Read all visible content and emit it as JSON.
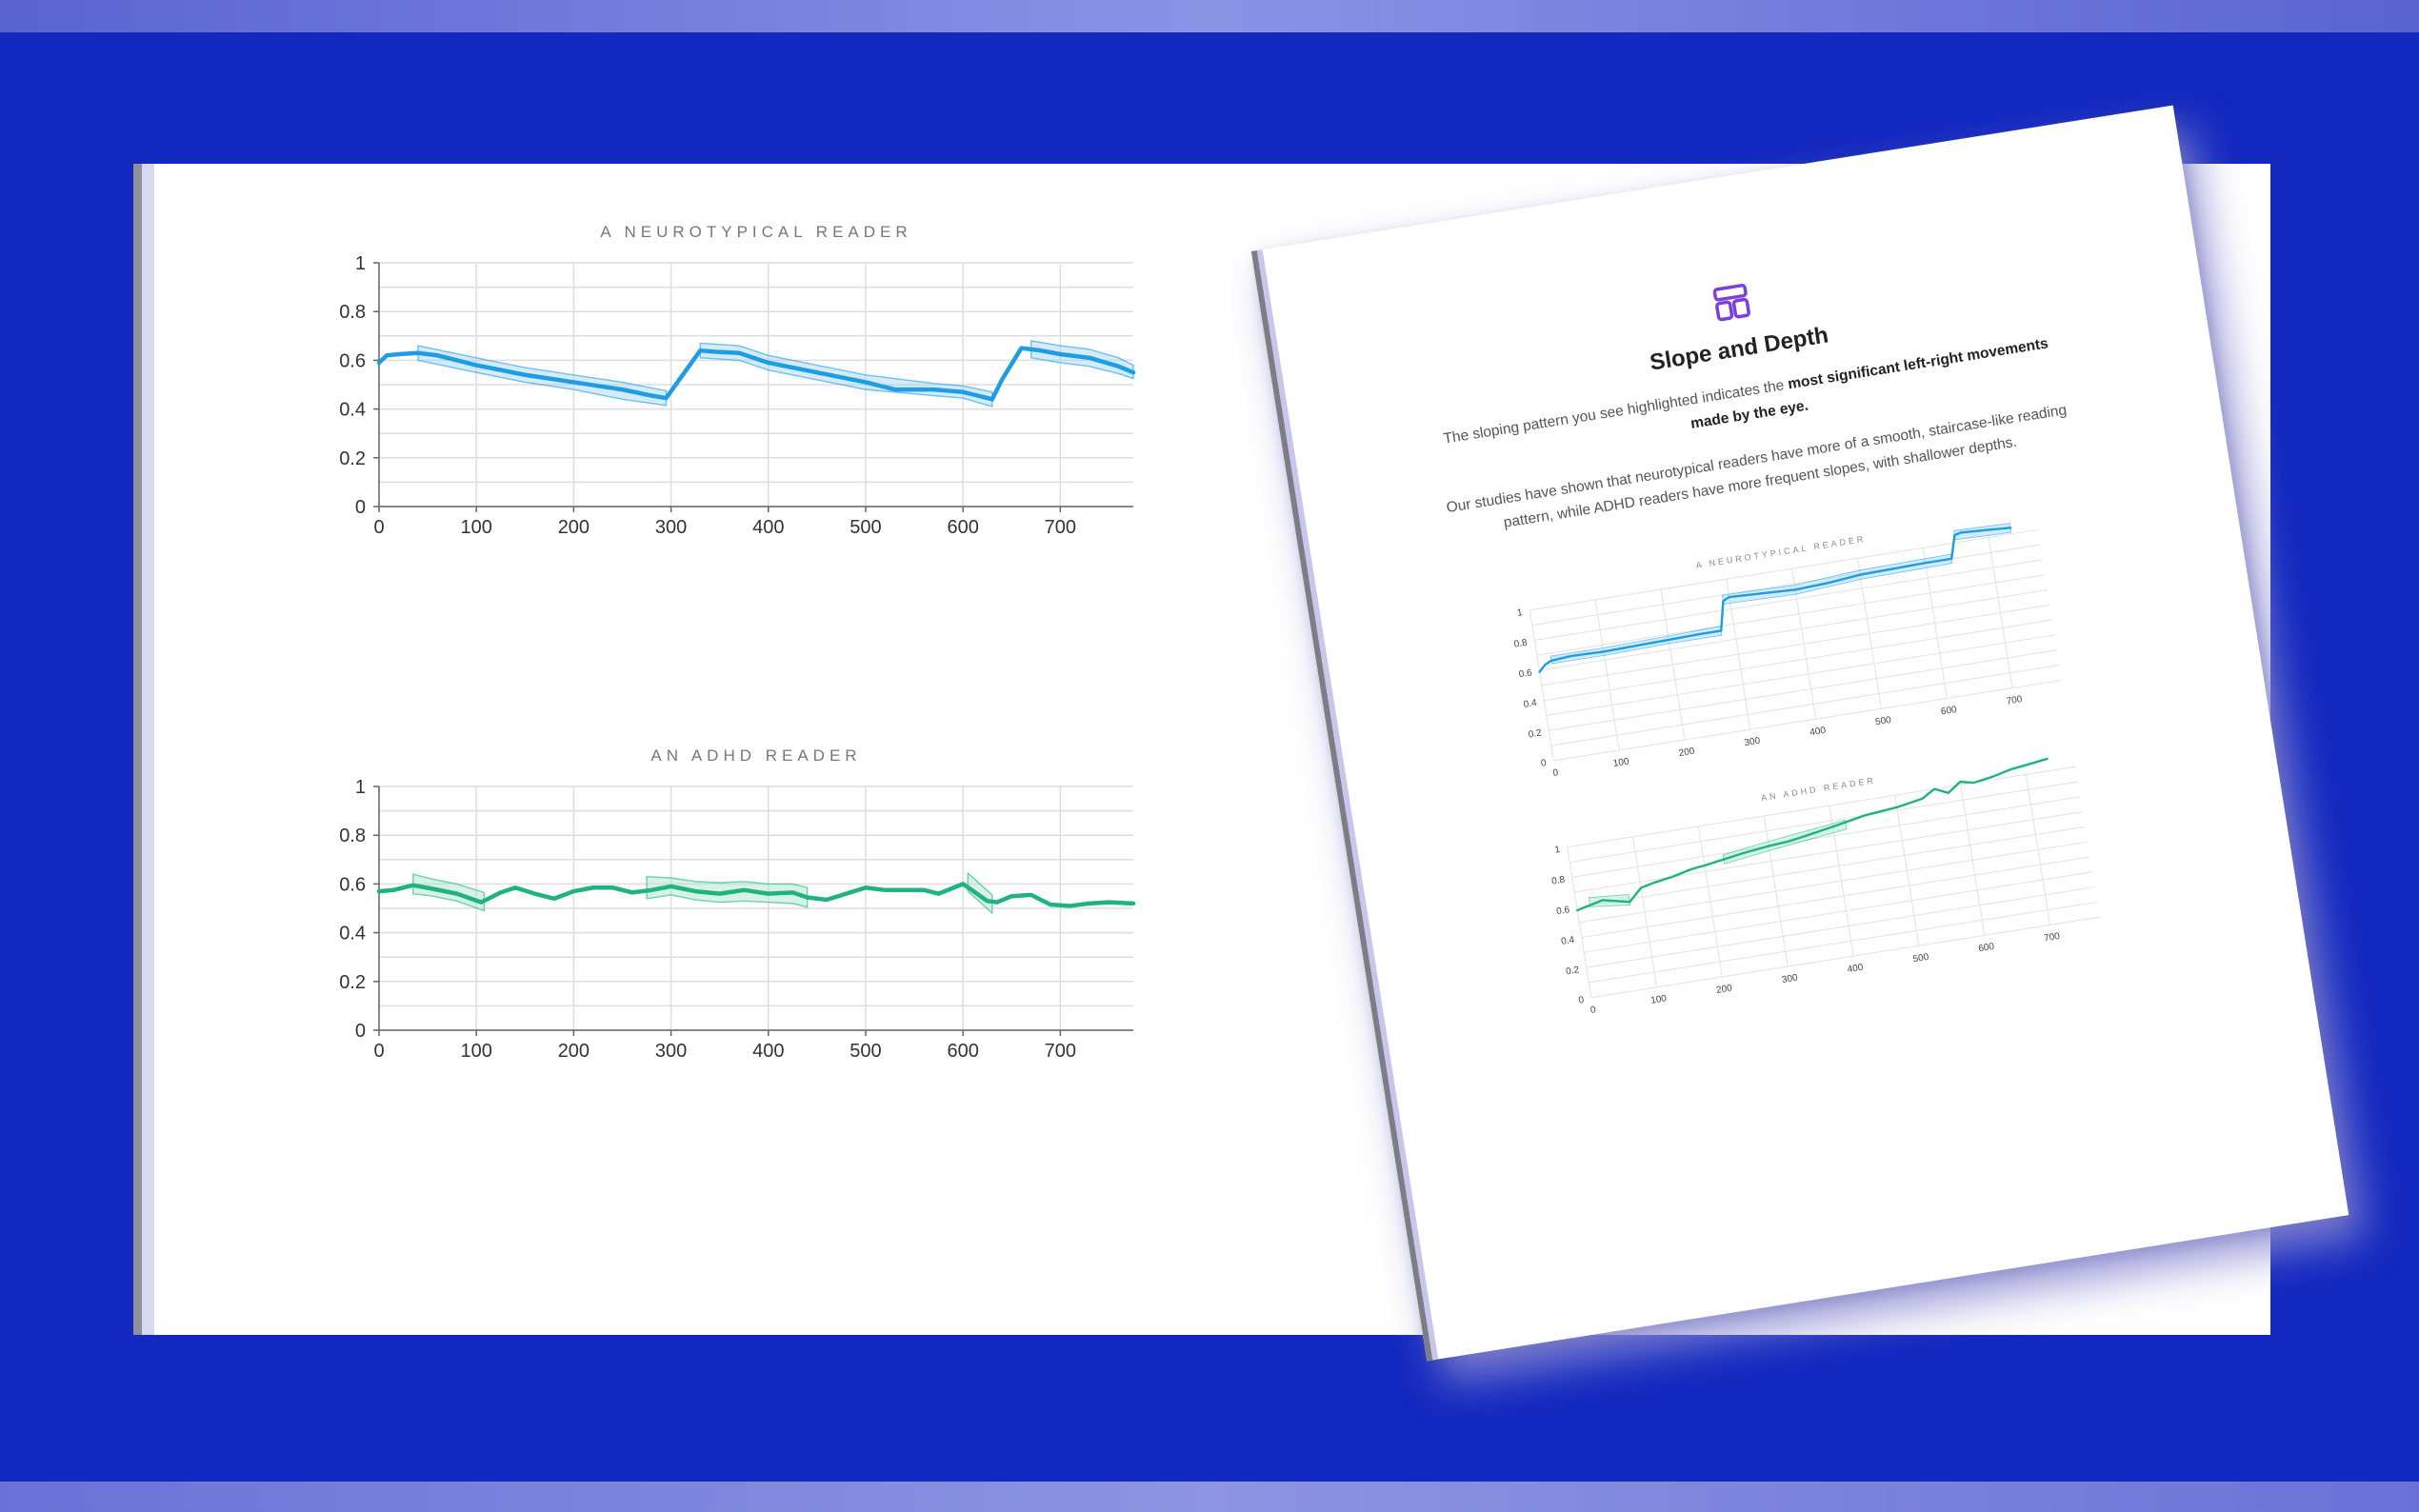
{
  "colors": {
    "background": "#1328bf",
    "neurotypical": "#1e9de3",
    "neurotypical_band": "#9fd3f3",
    "adhd": "#1fb47e",
    "adhd_band": "#a7e4c9",
    "icon": "#7b3fe0"
  },
  "document": {
    "icon": "layout-icon",
    "heading": "Slope and Depth",
    "paragraph1_lead": "The sloping pattern you see highlighted indicates the ",
    "paragraph1_bold": "most significant left-right movements made by the eye.",
    "paragraph2": "Our studies have shown that neurotypical readers have more of a smooth, staircase-like reading pattern, while ADHD readers have more frequent slopes, with shallower depths."
  },
  "chart_data": [
    {
      "id": "main-neurotypical",
      "type": "line",
      "title": "A NEUROTYPICAL READER",
      "xlabel": "",
      "ylabel": "",
      "xlim": [
        0,
        775
      ],
      "ylim": [
        0,
        1
      ],
      "xticks": [
        "0",
        "100",
        "200",
        "300",
        "400",
        "500",
        "600",
        "700"
      ],
      "yticks": [
        "0",
        "0.2",
        "0.4",
        "0.6",
        "0.8",
        "1"
      ],
      "grid": true,
      "series": [
        {
          "name": "neurotypical reader",
          "x": [
            0,
            8,
            20,
            40,
            60,
            100,
            150,
            200,
            250,
            280,
            295,
            330,
            345,
            370,
            400,
            450,
            500,
            530,
            570,
            600,
            630,
            640,
            660,
            680,
            700,
            730,
            760,
            775
          ],
          "y": [
            0.59,
            0.62,
            0.625,
            0.63,
            0.62,
            0.58,
            0.54,
            0.51,
            0.48,
            0.455,
            0.445,
            0.64,
            0.635,
            0.63,
            0.59,
            0.55,
            0.51,
            0.48,
            0.48,
            0.47,
            0.44,
            0.52,
            0.65,
            0.64,
            0.625,
            0.61,
            0.575,
            0.55
          ]
        }
      ],
      "bands": [
        {
          "x": [
            40,
            100,
            150,
            200,
            250,
            295
          ],
          "lower": [
            0.6,
            0.55,
            0.51,
            0.48,
            0.44,
            0.415
          ],
          "upper": [
            0.66,
            0.61,
            0.57,
            0.54,
            0.51,
            0.475
          ]
        },
        {
          "x": [
            330,
            370,
            400,
            450,
            500,
            570,
            600,
            630
          ],
          "lower": [
            0.61,
            0.6,
            0.56,
            0.52,
            0.48,
            0.455,
            0.445,
            0.41
          ],
          "upper": [
            0.67,
            0.66,
            0.62,
            0.58,
            0.54,
            0.505,
            0.495,
            0.47
          ]
        },
        {
          "x": [
            670,
            700,
            730,
            760,
            775
          ],
          "lower": [
            0.61,
            0.59,
            0.575,
            0.545,
            0.525
          ],
          "upper": [
            0.68,
            0.66,
            0.645,
            0.61,
            0.58
          ]
        }
      ]
    },
    {
      "id": "main-adhd",
      "type": "line",
      "title": "AN ADHD READER",
      "xlabel": "",
      "ylabel": "",
      "xlim": [
        0,
        775
      ],
      "ylim": [
        0,
        1
      ],
      "xticks": [
        "0",
        "100",
        "200",
        "300",
        "400",
        "500",
        "600",
        "700"
      ],
      "yticks": [
        "0",
        "0.2",
        "0.4",
        "0.6",
        "0.8",
        "1"
      ],
      "grid": true,
      "series": [
        {
          "name": "ADHD reader",
          "x": [
            0,
            15,
            35,
            55,
            80,
            105,
            125,
            140,
            160,
            180,
            200,
            220,
            240,
            260,
            280,
            300,
            325,
            350,
            375,
            400,
            425,
            440,
            460,
            480,
            500,
            520,
            540,
            560,
            575,
            600,
            625,
            635,
            650,
            670,
            690,
            710,
            730,
            750,
            775
          ],
          "y": [
            0.57,
            0.575,
            0.595,
            0.58,
            0.56,
            0.525,
            0.565,
            0.585,
            0.56,
            0.54,
            0.57,
            0.585,
            0.585,
            0.565,
            0.575,
            0.59,
            0.57,
            0.56,
            0.575,
            0.56,
            0.565,
            0.545,
            0.535,
            0.56,
            0.585,
            0.575,
            0.575,
            0.575,
            0.56,
            0.6,
            0.53,
            0.525,
            0.55,
            0.555,
            0.515,
            0.51,
            0.52,
            0.525,
            0.52
          ]
        }
      ],
      "bands": [
        {
          "x": [
            35,
            55,
            80,
            108
          ],
          "lower": [
            0.56,
            0.55,
            0.53,
            0.49
          ],
          "upper": [
            0.64,
            0.62,
            0.6,
            0.565
          ]
        },
        {
          "x": [
            275,
            300,
            325,
            350,
            375,
            400,
            425,
            440
          ],
          "lower": [
            0.54,
            0.555,
            0.535,
            0.525,
            0.53,
            0.525,
            0.52,
            0.505
          ],
          "upper": [
            0.63,
            0.625,
            0.61,
            0.605,
            0.61,
            0.6,
            0.6,
            0.585
          ]
        },
        {
          "x": [
            605,
            630
          ],
          "lower": [
            0.57,
            0.48
          ],
          "upper": [
            0.645,
            0.555
          ]
        }
      ]
    },
    {
      "id": "doc-neurotypical",
      "type": "line",
      "title": "A NEUROTYPICAL READER",
      "xlim": [
        0,
        775
      ],
      "ylim": [
        0,
        1
      ],
      "xticks": [
        "0",
        "100",
        "200",
        "300",
        "400",
        "500",
        "600",
        "700"
      ],
      "yticks": [
        "0",
        "0.2",
        "0.4",
        "0.6",
        "0.8",
        "1"
      ],
      "grid": true,
      "series": [
        {
          "name": "neurotypical reader",
          "x": [
            0,
            10,
            20,
            50,
            100,
            150,
            200,
            250,
            280,
            290,
            300,
            350,
            400,
            450,
            500,
            550,
            600,
            640,
            650,
            660,
            700,
            735
          ],
          "y": [
            0.59,
            0.63,
            0.65,
            0.66,
            0.655,
            0.66,
            0.665,
            0.67,
            0.67,
            0.86,
            0.88,
            0.87,
            0.86,
            0.87,
            0.89,
            0.895,
            0.9,
            0.9,
            1.05,
            1.06,
            1.05,
            1.04
          ]
        }
      ],
      "bands": [
        {
          "x": [
            20,
            100,
            200,
            280
          ],
          "lower": [
            0.63,
            0.63,
            0.64,
            0.64
          ],
          "upper": [
            0.68,
            0.68,
            0.69,
            0.7
          ]
        },
        {
          "x": [
            290,
            400,
            500,
            640
          ],
          "lower": [
            0.84,
            0.83,
            0.86,
            0.87
          ],
          "upper": [
            0.9,
            0.89,
            0.92,
            0.93
          ]
        },
        {
          "x": [
            650,
            735
          ],
          "lower": [
            1.02,
            1.01
          ],
          "upper": [
            1.08,
            1.07
          ]
        }
      ]
    },
    {
      "id": "doc-adhd",
      "type": "line",
      "title": "AN ADHD READER",
      "xlim": [
        0,
        775
      ],
      "ylim": [
        0,
        1
      ],
      "xticks": [
        "0",
        "100",
        "200",
        "300",
        "400",
        "500",
        "600",
        "700"
      ],
      "yticks": [
        "0",
        "0.2",
        "0.4",
        "0.6",
        "0.8",
        "1"
      ],
      "grid": true,
      "series": [
        {
          "name": "ADHD reader",
          "x": [
            0,
            20,
            40,
            60,
            80,
            100,
            120,
            150,
            180,
            200,
            230,
            260,
            300,
            330,
            360,
            400,
            450,
            500,
            540,
            560,
            580,
            600,
            620,
            650,
            680,
            700,
            735
          ],
          "y": [
            0.58,
            0.6,
            0.62,
            0.6,
            0.58,
            0.66,
            0.68,
            0.7,
            0.73,
            0.74,
            0.76,
            0.78,
            0.8,
            0.81,
            0.83,
            0.86,
            0.9,
            0.92,
            0.95,
            1.0,
            0.96,
            1.02,
            1.0,
            1.02,
            1.05,
            1.06,
            1.08
          ]
        }
      ],
      "bands": [
        {
          "x": [
            20,
            80
          ],
          "lower": [
            0.59,
            0.56
          ],
          "upper": [
            0.65,
            0.63
          ]
        },
        {
          "x": [
            230,
            300,
            360,
            420
          ],
          "lower": [
            0.73,
            0.77,
            0.8,
            0.83
          ],
          "upper": [
            0.79,
            0.83,
            0.86,
            0.89
          ]
        }
      ]
    }
  ]
}
